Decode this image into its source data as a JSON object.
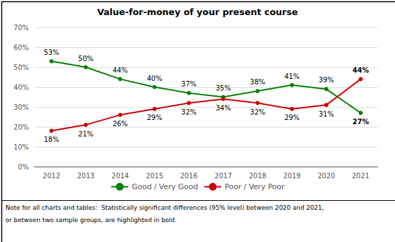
{
  "chart_data": {
    "type": "line",
    "title": "Value-for-money of your present course",
    "categories": [
      "2012",
      "2013",
      "2014",
      "2015",
      "2016",
      "2017",
      "2018",
      "2019",
      "2020",
      "2021"
    ],
    "series": [
      {
        "name": "Good / Very Good",
        "color": "#008000",
        "marker": "circle",
        "values": [
          53,
          50,
          44,
          40,
          37,
          35,
          38,
          41,
          39,
          27
        ],
        "value_labels": [
          "53%",
          "50%",
          "44%",
          "40%",
          "37%",
          "35%",
          "38%",
          "41%",
          "39%",
          "27%"
        ]
      },
      {
        "name": "Poor / Very Poor",
        "color": "#cc0000",
        "marker": "circle",
        "values": [
          18,
          21,
          26,
          29,
          32,
          34,
          32,
          29,
          31,
          44
        ],
        "value_labels": [
          "18%",
          "21%",
          "26%",
          "29%",
          "32%",
          "34%",
          "32%",
          "29%",
          "31%",
          "44%"
        ]
      }
    ],
    "ylim": [
      0,
      70
    ],
    "yticks": [
      {
        "value": 0,
        "label": "0%"
      },
      {
        "value": 10,
        "label": "10%"
      },
      {
        "value": 20,
        "label": "20%"
      },
      {
        "value": 30,
        "label": "30%"
      },
      {
        "value": 40,
        "label": "40%"
      },
      {
        "value": 50,
        "label": "50%"
      },
      {
        "value": 60,
        "label": "60%"
      },
      {
        "value": 70,
        "label": "70%"
      }
    ],
    "grid": true,
    "legend": "bottom",
    "data_labels": true,
    "annotations": [
      "Note for all charts and tables:  Statistically significant differences (95% level) between 2020 and 2021,",
      "or between two sample groups, are highlighted in bold."
    ]
  }
}
